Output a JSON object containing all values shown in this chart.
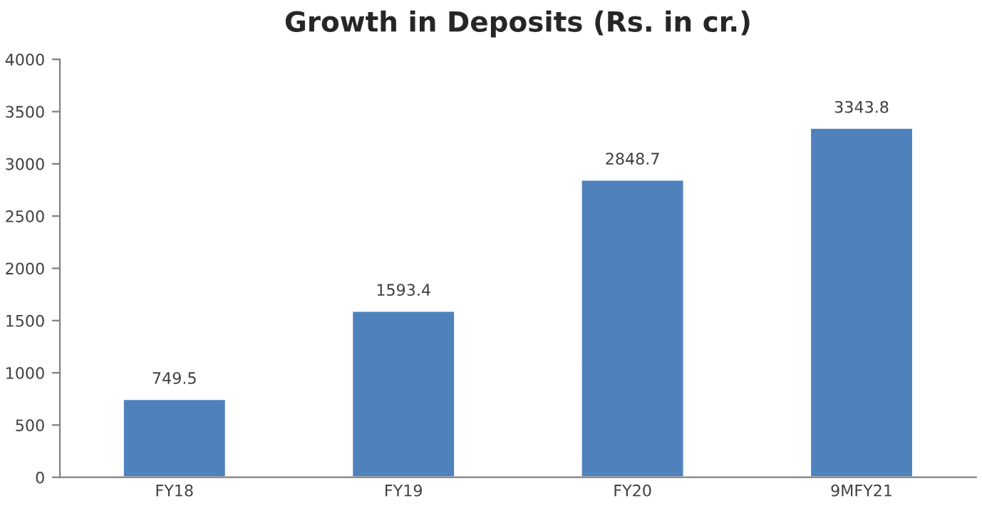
{
  "chart_data": {
    "type": "bar",
    "title": "Growth in Deposits (Rs. in cr.)",
    "categories": [
      "FY18",
      "FY19",
      "FY20",
      "9MFY21"
    ],
    "values": [
      749.5,
      1593.4,
      2848.7,
      3343.8
    ],
    "color": "#4f81bd",
    "ylim": [
      0,
      4000
    ],
    "yticks": [
      0,
      500,
      1000,
      1500,
      2000,
      2500,
      3000,
      3500,
      4000
    ],
    "data_labels": true
  }
}
